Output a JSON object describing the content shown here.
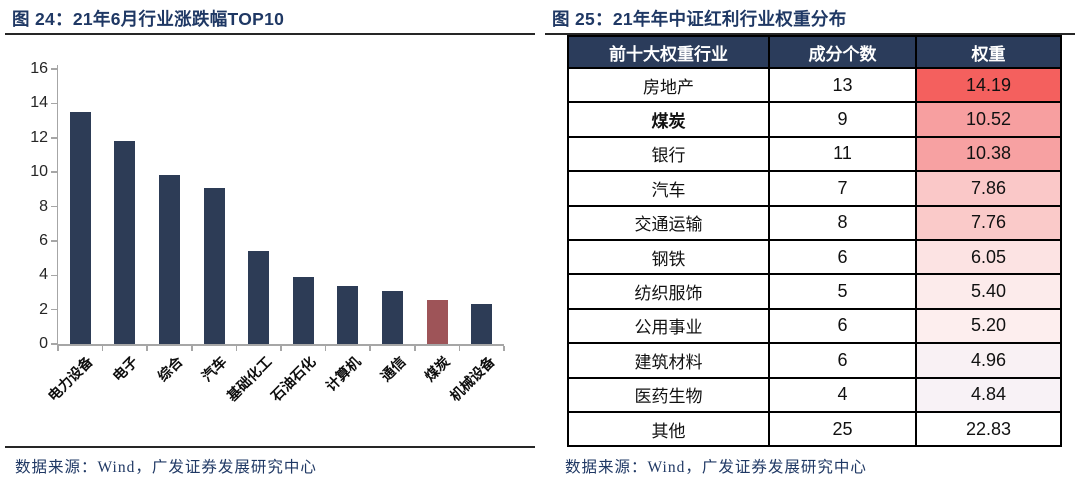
{
  "colors": {
    "navy_title": "#1f3864",
    "bar": "#2d3c56",
    "bar_highlight": "#9e5458",
    "table_header_bg": "#2b3c5b",
    "coal_text": "#e8000a",
    "axis": "#a6a6a6",
    "rule": "#262626"
  },
  "left_panel": {
    "title": "图 24：21年6月行业涨跌幅TOP10",
    "source": "数据来源：Wind，广发证券发展研究中心"
  },
  "right_panel": {
    "title": "图 25：21年年中证红利行业权重分布",
    "source": "数据来源：Wind，广发证券发展研究中心",
    "table": {
      "headers": [
        "前十大权重行业",
        "成分个数",
        "权重"
      ],
      "rows": [
        {
          "industry": "房地产",
          "count": "13",
          "weight": "14.19",
          "weight_bg": "#f4605e"
        },
        {
          "industry": "煤炭",
          "count": "9",
          "weight": "10.52",
          "weight_bg": "#f79fa0",
          "highlight": true
        },
        {
          "industry": "银行",
          "count": "11",
          "weight": "10.38",
          "weight_bg": "#f7a1a2"
        },
        {
          "industry": "汽车",
          "count": "7",
          "weight": "7.86",
          "weight_bg": "#fac8c8"
        },
        {
          "industry": "交通运输",
          "count": "8",
          "weight": "7.76",
          "weight_bg": "#facac9"
        },
        {
          "industry": "钢铁",
          "count": "6",
          "weight": "6.05",
          "weight_bg": "#fce3e3"
        },
        {
          "industry": "纺织服饰",
          "count": "5",
          "weight": "5.40",
          "weight_bg": "#fcebeb"
        },
        {
          "industry": "公用事业",
          "count": "6",
          "weight": "5.20",
          "weight_bg": "#fdeeee"
        },
        {
          "industry": "建筑材料",
          "count": "6",
          "weight": "4.96",
          "weight_bg": "#f9f1f4"
        },
        {
          "industry": "医药生物",
          "count": "4",
          "weight": "4.84",
          "weight_bg": "#f8f2f6"
        },
        {
          "industry": "其他",
          "count": "25",
          "weight": "22.83",
          "weight_bg": "#ffffff"
        }
      ]
    }
  },
  "chart_data": {
    "type": "bar",
    "title": "21年6月行业涨跌幅TOP10",
    "categories": [
      "电力设备",
      "电子",
      "综合",
      "汽车",
      "基础化工",
      "石油石化",
      "计算机",
      "通信",
      "煤炭",
      "机械设备"
    ],
    "values": [
      13.5,
      11.8,
      9.85,
      9.05,
      5.4,
      3.9,
      3.35,
      3.1,
      2.55,
      2.3
    ],
    "ylim": [
      0,
      16
    ],
    "ytick_step": 2,
    "yticks": [
      "0",
      "2",
      "4",
      "6",
      "8",
      "10",
      "12",
      "14",
      "16"
    ],
    "grid": false,
    "legend": null,
    "highlight_index": 8,
    "highlight_category": "煤炭"
  }
}
